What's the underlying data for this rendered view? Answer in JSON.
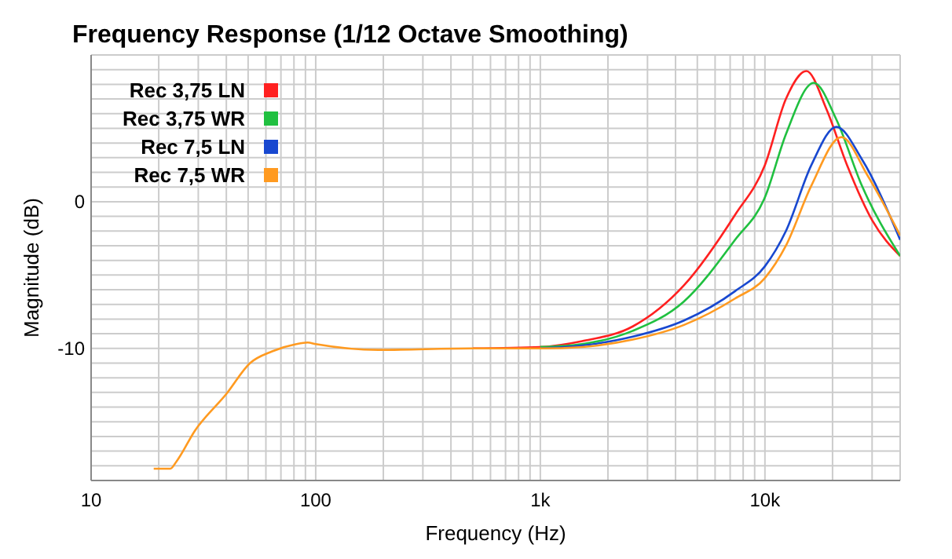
{
  "chart_data": {
    "type": "line",
    "title": "Frequency Response (1/12 Octave Smoothing)",
    "xlabel": "Frequency (Hz)",
    "ylabel": "Magnitude (dB)",
    "log": "x",
    "grid": true,
    "legend": "top left",
    "marker": "none",
    "line_style": "solid",
    "xlim": [
      10,
      40000
    ],
    "ylim": [
      -19,
      10
    ],
    "xticks": [
      10,
      {
        "value": 20,
        "label": null
      },
      {
        "value": 30,
        "label": null
      },
      {
        "value": 40,
        "label": null
      },
      {
        "value": 50,
        "label": null
      },
      {
        "value": 60,
        "label": null
      },
      {
        "value": 70,
        "label": null
      },
      {
        "value": 80,
        "label": null
      },
      {
        "value": 90,
        "label": null
      },
      100,
      {
        "value": 200,
        "label": null
      },
      {
        "value": 300,
        "label": null
      },
      {
        "value": 400,
        "label": null
      },
      {
        "value": 500,
        "label": null
      },
      {
        "value": 600,
        "label": null
      },
      {
        "value": 700,
        "label": null
      },
      {
        "value": 800,
        "label": null
      },
      {
        "value": 900,
        "label": null
      },
      {
        "value": 1000,
        "label": "1k"
      },
      {
        "value": 2000,
        "label": null
      },
      {
        "value": 3000,
        "label": null
      },
      {
        "value": 4000,
        "label": null
      },
      {
        "value": 5000,
        "label": null
      },
      {
        "value": 6000,
        "label": null
      },
      {
        "value": 7000,
        "label": null
      },
      {
        "value": 8000,
        "label": null
      },
      {
        "value": 9000,
        "label": null
      },
      {
        "value": 10000,
        "label": "10k"
      },
      {
        "value": 20000,
        "label": null
      },
      {
        "value": 30000,
        "label": null
      }
    ],
    "yticks": [
      {
        "value": -19,
        "label": null
      },
      {
        "value": -18,
        "label": null
      },
      {
        "value": -17,
        "label": null
      },
      {
        "value": -16,
        "label": null
      },
      {
        "value": -15,
        "label": null
      },
      {
        "value": -14,
        "label": null
      },
      {
        "value": -13,
        "label": null
      },
      {
        "value": -12,
        "label": null
      },
      {
        "value": -11,
        "label": null
      },
      -10,
      {
        "value": -9,
        "label": null
      },
      {
        "value": -8,
        "label": null
      },
      {
        "value": -7,
        "label": null
      },
      {
        "value": -6,
        "label": null
      },
      {
        "value": -5,
        "label": null
      },
      {
        "value": -4,
        "label": null
      },
      {
        "value": -3,
        "label": null
      },
      {
        "value": -2,
        "label": null
      },
      {
        "value": -1,
        "label": null
      },
      0,
      {
        "value": 1,
        "label": null
      },
      {
        "value": 2,
        "label": null
      },
      {
        "value": 3,
        "label": null
      },
      {
        "value": 4,
        "label": null
      },
      {
        "value": 5,
        "label": null
      },
      {
        "value": 6,
        "label": null
      },
      {
        "value": 7,
        "label": null
      },
      {
        "value": 8,
        "label": null
      },
      {
        "value": 9,
        "label": null
      },
      {
        "value": 10,
        "label": null
      }
    ],
    "series": [
      {
        "name": "Rec 3,75 LN",
        "color": "#ff2020",
        "x": [
          500,
          1000,
          1535,
          2580,
          4360,
          7360,
          10000,
          12400,
          15300,
          18800,
          23200,
          30100,
          40000
        ],
        "values": [
          -10,
          -9.9,
          -9.5,
          -8.5,
          -5.7,
          -0.9,
          2.5,
          7,
          8.9,
          6.3,
          2.5,
          -1.3,
          -3.7
        ]
      },
      {
        "name": "Rec 3,75 WR",
        "color": "#20c040",
        "x": [
          1000,
          1535,
          2580,
          4360,
          7360,
          10000,
          12400,
          16500,
          20800,
          27000,
          40000
        ],
        "values": [
          -9.9,
          -9.7,
          -8.8,
          -6.8,
          -2.6,
          0.3,
          4.6,
          8.1,
          5.6,
          1.1,
          -3.7
        ]
      },
      {
        "name": "Rec 7,5 LN",
        "color": "#1848d0",
        "x": [
          1000,
          1535,
          2580,
          4360,
          7360,
          10000,
          12400,
          16100,
          20800,
          27000,
          40000
        ],
        "values": [
          -10,
          -9.8,
          -9.2,
          -8.1,
          -6.1,
          -4.4,
          -2,
          2.5,
          5.1,
          2.9,
          -2.6
        ]
      },
      {
        "name": "Rec 7,5 WR",
        "color": "#ff9a20",
        "x": [
          19,
          22.5,
          24,
          29,
          40,
          51,
          64,
          82,
          92,
          100,
          190,
          500,
          1000,
          1535,
          2580,
          4360,
          7360,
          10000,
          12400,
          16100,
          21900,
          28600,
          40000
        ],
        "values": [
          -18.2,
          -18.2,
          -17.7,
          -15.6,
          -13.1,
          -11,
          -10.2,
          -9.7,
          -9.6,
          -9.7,
          -10.1,
          -10,
          -10,
          -9.9,
          -9.4,
          -8.4,
          -6.6,
          -5.2,
          -3,
          1.1,
          4.4,
          1.8,
          -2.3
        ]
      }
    ]
  }
}
